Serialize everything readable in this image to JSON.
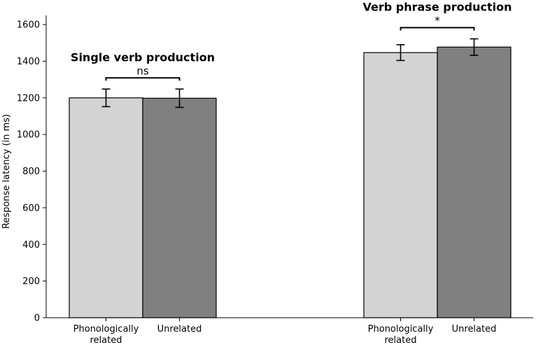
{
  "chart_data": {
    "type": "bar",
    "ylabel": "Response latency (in ms)",
    "xlabel": "",
    "ylim": [
      0,
      1650
    ],
    "yticks": [
      0,
      200,
      400,
      600,
      800,
      1000,
      1200,
      1400,
      1600
    ],
    "grid": false,
    "legend": "none",
    "groups": [
      {
        "title": "Single verb production",
        "significance": "ns",
        "bars": [
          {
            "label_lines": [
              "Phonologically",
              "related"
            ],
            "value": 1200,
            "error": 48,
            "color": "#d3d3d3"
          },
          {
            "label_lines": [
              "Unrelated"
            ],
            "value": 1198,
            "error": 50,
            "color": "#808080"
          }
        ]
      },
      {
        "title": "Verb phrase production",
        "significance": "*",
        "bars": [
          {
            "label_lines": [
              "Phonologically",
              "related"
            ],
            "value": 1447,
            "error": 43,
            "color": "#d3d3d3"
          },
          {
            "label_lines": [
              "Unrelated"
            ],
            "value": 1477,
            "error": 45,
            "color": "#808080"
          }
        ]
      }
    ]
  }
}
